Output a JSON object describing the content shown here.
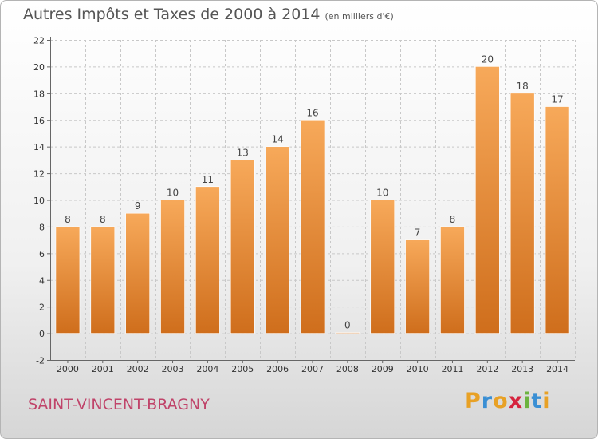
{
  "header": {
    "title": "Autres Impôts et Taxes de 2000 à 2014",
    "subtitle": "(en milliers d'€)"
  },
  "footer": {
    "commune": "SAINT-VINCENT-BRAGNY",
    "logo_text": "Proxiti",
    "logo_colors": [
      "#e8a125",
      "#3a8fd4",
      "#e8a125",
      "#d6243e",
      "#6cb33f",
      "#3a8fd4",
      "#e8a125"
    ]
  },
  "colors": {
    "bar_light": "#f7a95a",
    "bar_dark": "#cf6e1c",
    "gridline": "#c8c8c8",
    "axis": "#666666",
    "text": "#333333"
  },
  "chart_data": {
    "type": "bar",
    "title": "Autres Impôts et Taxes de 2000 à 2014",
    "subtitle": "(en milliers d'€)",
    "categories": [
      "2000",
      "2001",
      "2002",
      "2003",
      "2004",
      "2005",
      "2006",
      "2007",
      "2008",
      "2009",
      "2010",
      "2011",
      "2012",
      "2013",
      "2014"
    ],
    "values": [
      8,
      8,
      9,
      10,
      11,
      13,
      14,
      16,
      0,
      10,
      7,
      8,
      20,
      18,
      17
    ],
    "data_labels": [
      "8",
      "8",
      "9",
      "10",
      "11",
      "13",
      "14",
      "16",
      "0",
      "10",
      "7",
      "8",
      "20",
      "18",
      "17"
    ],
    "ylim": [
      -2,
      22
    ],
    "yticks": [
      -2,
      0,
      2,
      4,
      6,
      8,
      10,
      12,
      14,
      16,
      18,
      20,
      22
    ],
    "ytick_labels": [
      "-2",
      "0",
      "2",
      "4",
      "6",
      "8",
      "10",
      "12",
      "14",
      "16",
      "18",
      "20",
      "22"
    ],
    "grid": true,
    "legend": "none"
  }
}
